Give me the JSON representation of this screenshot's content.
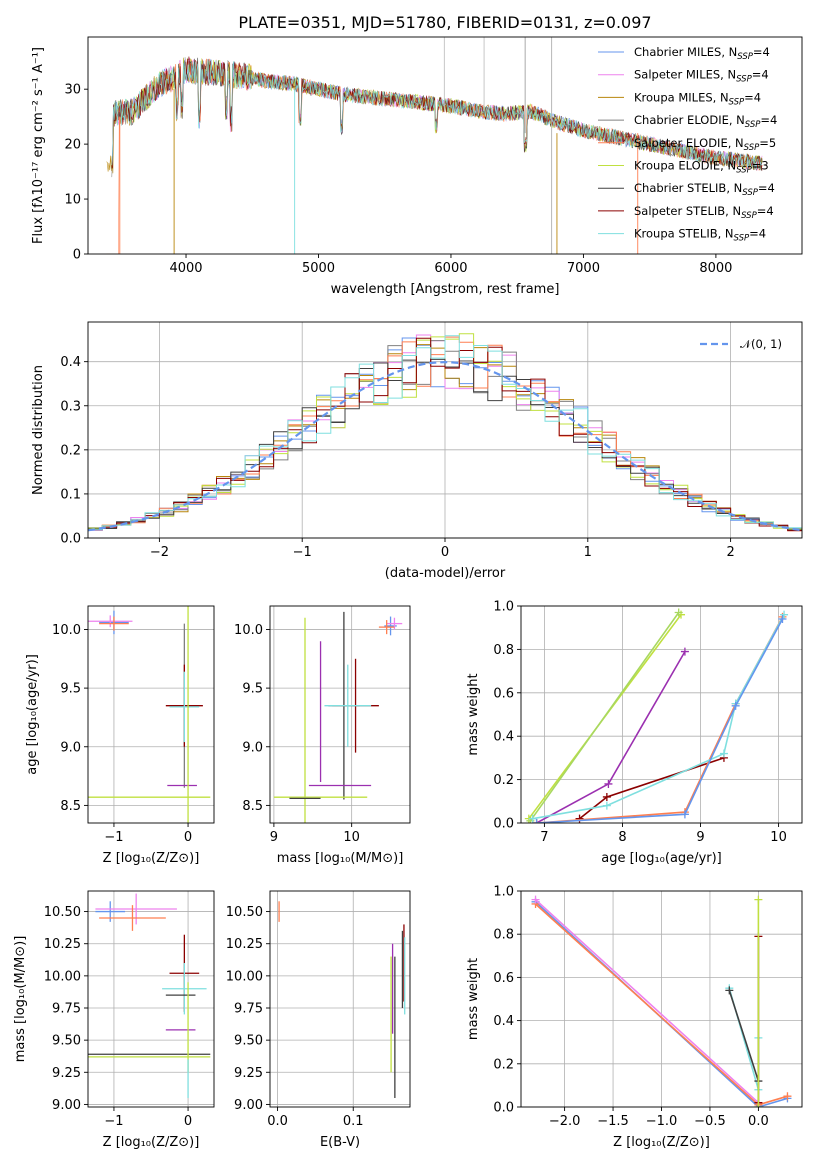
{
  "chart_data": [
    {
      "id": "spectrum",
      "type": "line",
      "title": "PLATE=0351, MJD=51780, FIBERID=0131, z=0.097",
      "xlabel": "wavelength [Angstrom, rest frame]",
      "ylabel": "Flux [fλ10⁻¹⁷ erg cm⁻² s⁻¹ A⁻¹]",
      "xlim": [
        3260,
        8650
      ],
      "ylim": [
        0,
        39.5
      ],
      "xticks": [
        4000,
        5000,
        6000,
        7000,
        8000
      ],
      "yticks": [
        0,
        10,
        20,
        30
      ],
      "legend_position": "top-right",
      "grid": false,
      "continuum": {
        "x": [
          3450,
          3600,
          3700,
          3800,
          3900,
          4000,
          4200,
          4400,
          4600,
          4800,
          5000,
          5200,
          5400,
          5600,
          5800,
          6000,
          6200,
          6400,
          6600,
          6800,
          7000,
          7200,
          7400,
          7600,
          7800,
          8000,
          8200,
          8350
        ],
        "y": [
          25.5,
          26,
          28.5,
          31,
          32,
          33.5,
          33,
          32.5,
          31.5,
          31,
          30,
          29,
          28.5,
          28,
          27.5,
          27,
          26,
          25.5,
          26,
          24,
          22.5,
          21.5,
          20.5,
          19.5,
          18.5,
          17.5,
          17,
          16.5
        ]
      },
      "series": [
        {
          "name": "Chabrier MILES, N_SSP=4",
          "legend": "Chabrier MILES, N",
          "color": "#6495ed"
        },
        {
          "name": "Salpeter MILES, N_SSP=4",
          "legend": "Salpeter MILES, N",
          "color": "#ee82ee"
        },
        {
          "name": "Kroupa MILES, N_SSP=4",
          "legend": "Kroupa MILES, N",
          "color": "#b8860b"
        },
        {
          "name": "Chabrier ELODIE, N_SSP=4",
          "legend": "Chabrier ELODIE, N",
          "color": "#808080"
        },
        {
          "name": "Salpeter ELODIE, N_SSP=5",
          "legend": "Salpeter ELODIE, N",
          "color": "#ff7f50"
        },
        {
          "name": "Kroupa ELODIE, N_SSP=3",
          "legend": "Kroupa ELODIE, N",
          "color": "#c0e040"
        },
        {
          "name": "Chabrier STELIB, N_SSP=4",
          "legend": "Chabrier STELIB, N",
          "color": "#404040"
        },
        {
          "name": "Salpeter STELIB, N_SSP=4",
          "legend": "Salpeter STELIB, N",
          "color": "#8b0000"
        },
        {
          "name": "Kroupa STELIB, N_SSP=4",
          "legend": "Kroupa STELIB, N",
          "color": "#7fdfdf"
        }
      ],
      "legend_sub": "SSP",
      "legend_eq": [
        "=4",
        "=4",
        "=4",
        "=4",
        "=5",
        "=3",
        "=4",
        "=4",
        "=4"
      ]
    },
    {
      "id": "residuals",
      "type": "histogram",
      "xlabel": "(data-model)/error",
      "ylabel": "Normed distribution",
      "xlim": [
        -2.5,
        2.5
      ],
      "ylim": [
        0,
        0.49
      ],
      "xticks": [
        -2,
        -1,
        0,
        1,
        2
      ],
      "yticks": [
        0.0,
        0.1,
        0.2,
        0.3,
        0.4
      ],
      "grid": true,
      "legend": "𝒩(0, 1)",
      "legend_position": "top-right",
      "reference_curve": {
        "name": "N(0,1)",
        "color": "#6495ed",
        "mean": 0,
        "sigma": 1
      },
      "bin_width": 0.1,
      "approx_profile": "gaussian mean 0, sigma 1, peak ~0.40 with scatter up to ~0.47 near x=0"
    },
    {
      "id": "age_Z",
      "type": "scatter",
      "xlabel": "Z [log₁₀(Z/Z⊙)]",
      "ylabel": "age  [log₁₀(age/yr)]",
      "xlim": [
        -1.35,
        0.35
      ],
      "ylim": [
        8.35,
        10.2
      ],
      "xticks": [
        -1,
        0
      ],
      "yticks": [
        8.5,
        9.0,
        9.5,
        10.0
      ],
      "grid": true,
      "points": [
        {
          "x": -1.0,
          "y": 10.06,
          "xerr": 0.2,
          "yerr": 0.1,
          "color": "#6495ed"
        },
        {
          "x": -1.05,
          "y": 10.07,
          "xerr": 0.3,
          "yerr": 0.05,
          "color": "#ee82ee"
        },
        {
          "x": -1.0,
          "y": 10.05,
          "xerr": 0.2,
          "yerr": 0.06,
          "color": "#ff7f50"
        },
        {
          "x": -0.05,
          "y": 9.35,
          "xerr": 0.2,
          "yerr": 0.7,
          "color": "#808080"
        },
        {
          "x": -0.05,
          "y": 9.35,
          "xerr": 0.25,
          "yerr": 0.35,
          "color": "#8b0000"
        },
        {
          "x": -0.05,
          "y": 9.34,
          "xerr": 0.2,
          "yerr": 0.3,
          "color": "#7fdfdf"
        },
        {
          "x": -0.08,
          "y": 8.67,
          "xerr": 0.2,
          "yerr": 0.0,
          "color": "#9b30b0"
        },
        {
          "x": -0.55,
          "y": 8.57,
          "xerr": 0.85,
          "yerr": 0.0,
          "color": "#c0e040"
        },
        {
          "x": 0.0,
          "y": 9.0,
          "xerr": 0.0,
          "yerr": 1.2,
          "color": "#c0e040"
        }
      ]
    },
    {
      "id": "age_mass",
      "type": "scatter",
      "xlabel": "mass [log₁₀(M/M⊙)]",
      "ylabel": "",
      "xlim": [
        8.95,
        10.75
      ],
      "ylim": [
        8.35,
        10.2
      ],
      "xticks": [
        9,
        10
      ],
      "yticks": [
        8.5,
        9.0,
        9.5,
        10.0
      ],
      "grid": true,
      "points": [
        {
          "x": 10.5,
          "y": 10.03,
          "xerr": 0.08,
          "yerr": 0.08,
          "color": "#6495ed"
        },
        {
          "x": 10.55,
          "y": 10.05,
          "xerr": 0.1,
          "yerr": 0.05,
          "color": "#ee82ee"
        },
        {
          "x": 10.45,
          "y": 10.02,
          "xerr": 0.1,
          "yerr": 0.06,
          "color": "#ff7f50"
        },
        {
          "x": 9.9,
          "y": 9.35,
          "xerr": 0.2,
          "yerr": 0.8,
          "color": "#404040"
        },
        {
          "x": 10.05,
          "y": 9.35,
          "xerr": 0.3,
          "yerr": 0.4,
          "color": "#8b0000"
        },
        {
          "x": 9.95,
          "y": 9.35,
          "xerr": 0.3,
          "yerr": 0.35,
          "color": "#7fdfdf"
        },
        {
          "x": 9.85,
          "y": 8.67,
          "xerr": 0.4,
          "yerr": 0.0,
          "color": "#9b30b0"
        },
        {
          "x": 9.4,
          "y": 9.0,
          "xerr": 0.0,
          "yerr": 1.1,
          "color": "#c0e040"
        },
        {
          "x": 9.6,
          "y": 8.57,
          "xerr": 0.6,
          "yerr": 0.0,
          "color": "#c0e040"
        },
        {
          "x": 9.4,
          "y": 8.56,
          "xerr": 0.2,
          "yerr": 0.0,
          "color": "#404040"
        },
        {
          "x": 9.6,
          "y": 9.3,
          "xerr": 0.0,
          "yerr": 0.6,
          "color": "#9b30b0"
        }
      ]
    },
    {
      "id": "weight_age",
      "type": "line",
      "xlabel": "age  [log₁₀(age/yr)]",
      "ylabel": "mass weight",
      "xlim": [
        6.7,
        10.3
      ],
      "ylim": [
        0,
        1.0
      ],
      "xticks": [
        7,
        8,
        9,
        10
      ],
      "yticks": [
        0.0,
        0.2,
        0.4,
        0.6,
        0.8,
        1.0
      ],
      "grid": true,
      "series": [
        {
          "color": "#c0e040",
          "x": [
            6.8,
            8.75
          ],
          "y": [
            0.02,
            0.96
          ]
        },
        {
          "color": "#a8d860",
          "x": [
            6.82,
            8.72
          ],
          "y": [
            0.01,
            0.97
          ]
        },
        {
          "color": "#9b30b0",
          "x": [
            6.9,
            7.82,
            8.8
          ],
          "y": [
            0.0,
            0.18,
            0.79
          ]
        },
        {
          "color": "#8b0000",
          "x": [
            7.45,
            7.8,
            9.3
          ],
          "y": [
            0.02,
            0.12,
            0.3
          ]
        },
        {
          "color": "#ff7f50",
          "x": [
            6.9,
            8.8,
            9.45,
            10.05
          ],
          "y": [
            0.0,
            0.05,
            0.55,
            0.95
          ]
        },
        {
          "color": "#7fdfdf",
          "x": [
            6.85,
            7.8,
            9.3,
            9.45,
            10.07
          ],
          "y": [
            0.02,
            0.08,
            0.32,
            0.55,
            0.96
          ]
        },
        {
          "color": "#6495ed",
          "x": [
            6.9,
            8.8,
            9.45,
            10.05
          ],
          "y": [
            0.0,
            0.04,
            0.54,
            0.94
          ]
        }
      ]
    },
    {
      "id": "mass_Z",
      "type": "scatter",
      "xlabel": "Z [log₁₀(Z/Z⊙)]",
      "ylabel": "mass [log₁₀(M/M⊙)]",
      "xlim": [
        -1.35,
        0.35
      ],
      "ylim": [
        8.98,
        10.66
      ],
      "xticks": [
        -1,
        0
      ],
      "yticks": [
        9.0,
        9.25,
        9.5,
        9.75,
        10.0,
        10.25,
        10.5
      ],
      "grid": true,
      "points": [
        {
          "x": -1.05,
          "y": 10.5,
          "xerr": 0.2,
          "yerr": 0.08,
          "color": "#6495ed"
        },
        {
          "x": -0.7,
          "y": 10.52,
          "xerr": 0.55,
          "yerr": 0.12,
          "color": "#ee82ee"
        },
        {
          "x": -0.75,
          "y": 10.45,
          "xerr": 0.45,
          "yerr": 0.1,
          "color": "#ff7f50"
        },
        {
          "x": -0.05,
          "y": 10.02,
          "xerr": 0.2,
          "yerr": 0.3,
          "color": "#8b0000"
        },
        {
          "x": -0.05,
          "y": 9.9,
          "xerr": 0.3,
          "yerr": 0.2,
          "color": "#7fdfdf"
        },
        {
          "x": -0.1,
          "y": 9.85,
          "xerr": 0.2,
          "yerr": 0.0,
          "color": "#404040"
        },
        {
          "x": -0.1,
          "y": 9.58,
          "xerr": 0.2,
          "yerr": 0.0,
          "color": "#9b30b0"
        },
        {
          "x": -0.55,
          "y": 9.39,
          "xerr": 0.85,
          "yerr": 0.0,
          "color": "#404040"
        },
        {
          "x": -0.55,
          "y": 9.37,
          "xerr": 0.85,
          "yerr": 0.0,
          "color": "#c0e040"
        },
        {
          "x": 0.0,
          "y": 9.6,
          "xerr": 0.0,
          "yerr": 0.35,
          "color": "#c0e040"
        },
        {
          "x": 0.0,
          "y": 9.2,
          "xerr": 0.0,
          "yerr": 0.15,
          "color": "#7fdfdf"
        }
      ]
    },
    {
      "id": "mass_EBV",
      "type": "scatter",
      "xlabel": "E(B-V)",
      "ylabel": "",
      "xlim": [
        -0.01,
        0.175
      ],
      "ylim": [
        8.98,
        10.66
      ],
      "xticks": [
        0.0,
        0.1
      ],
      "yticks": [
        9.0,
        9.25,
        9.5,
        9.75,
        10.0,
        10.25,
        10.5
      ],
      "grid": true,
      "points": [
        {
          "x": 0.002,
          "y": 10.5,
          "xerr": 0.0,
          "yerr": 0.08,
          "color": "#ff7f50"
        },
        {
          "x": 0.15,
          "y": 9.7,
          "xerr": 0.0,
          "yerr": 0.45,
          "color": "#c0e040"
        },
        {
          "x": 0.152,
          "y": 9.9,
          "xerr": 0.0,
          "yerr": 0.35,
          "color": "#9b30b0"
        },
        {
          "x": 0.155,
          "y": 9.6,
          "xerr": 0.0,
          "yerr": 0.55,
          "color": "#404040"
        },
        {
          "x": 0.165,
          "y": 10.05,
          "xerr": 0.0,
          "yerr": 0.3,
          "color": "#404040"
        },
        {
          "x": 0.167,
          "y": 10.1,
          "xerr": 0.0,
          "yerr": 0.3,
          "color": "#8b0000"
        },
        {
          "x": 0.168,
          "y": 10.0,
          "xerr": 0.0,
          "yerr": 0.3,
          "color": "#7fdfdf"
        }
      ]
    },
    {
      "id": "weight_Z",
      "type": "line",
      "xlabel": "Z [log₁₀(Z/Z⊙)]",
      "ylabel": "mass weight",
      "xlim": [
        -2.45,
        0.45
      ],
      "ylim": [
        0,
        1.0
      ],
      "xticks": [
        -2.0,
        -1.5,
        -1.0,
        -0.5,
        0.0
      ],
      "yticks": [
        0.0,
        0.2,
        0.4,
        0.6,
        0.8,
        1.0
      ],
      "grid": true,
      "series": [
        {
          "color": "#6495ed",
          "x": [
            -2.3,
            0.0,
            0.3
          ],
          "y": [
            0.95,
            0.0,
            0.04
          ]
        },
        {
          "color": "#ff7f50",
          "x": [
            -2.3,
            0.0,
            0.3
          ],
          "y": [
            0.94,
            0.01,
            0.05
          ]
        },
        {
          "color": "#ee82ee",
          "x": [
            -2.3,
            0.0
          ],
          "y": [
            0.96,
            0.02
          ]
        },
        {
          "color": "#7fdfdf",
          "x": [
            -0.3,
            0.0,
            0.0
          ],
          "y": [
            0.55,
            0.08,
            0.32
          ]
        },
        {
          "color": "#404040",
          "x": [
            -0.3,
            0.0
          ],
          "y": [
            0.54,
            0.12
          ]
        },
        {
          "color": "#8b0000",
          "x": [
            0.0,
            0.0
          ],
          "y": [
            0.02,
            0.79
          ]
        },
        {
          "color": "#c0e040",
          "x": [
            0.0,
            0.0
          ],
          "y": [
            0.0,
            0.96
          ]
        }
      ]
    }
  ]
}
